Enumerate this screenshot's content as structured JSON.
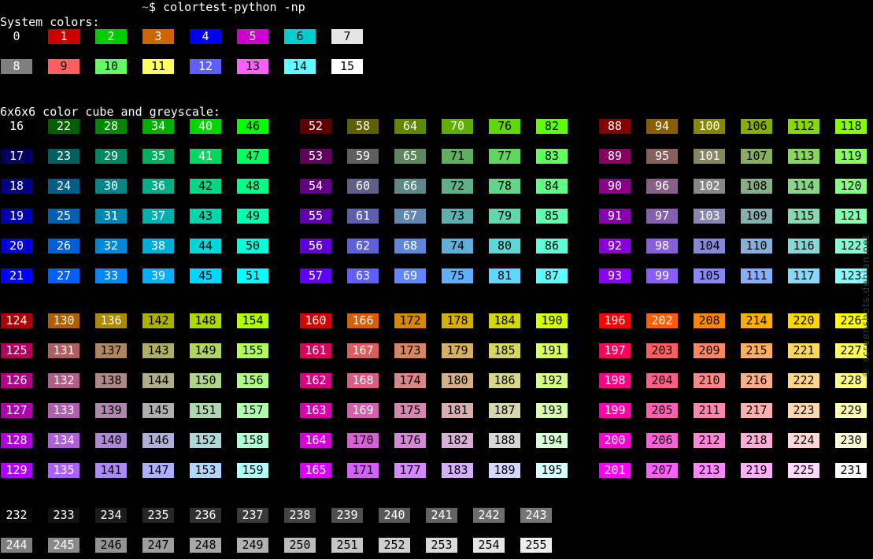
{
  "prompt": {
    "cwd": "~",
    "symbol": "$",
    "command": "colortest-python -np"
  },
  "sections": {
    "system_title": "System colors:",
    "cube_title": "6x6x6 color cube and greyscale:"
  },
  "watermark": "© screenshots.debian.net",
  "palette": {
    "system": [
      "#000000",
      "#cd0000",
      "#00cd00",
      "#cd6600",
      "#0000ee",
      "#cd00cd",
      "#00cdcd",
      "#e5e5e5",
      "#7f7f7f",
      "#ff5f5f",
      "#5fff5f",
      "#ffff5f",
      "#5f5fff",
      "#ff5fff",
      "#5fffff",
      "#ffffff"
    ],
    "cube_levels": [
      "00",
      "5f",
      "87",
      "af",
      "d7",
      "ff"
    ],
    "grey_start": 8,
    "grey_step": 10
  },
  "colors": {
    "0": "0",
    "1": "1",
    "2": "2",
    "3": "3",
    "4": "4",
    "5": "5",
    "6": "6",
    "7": "7",
    "8": "8",
    "9": "9",
    "10": "10",
    "11": "11",
    "12": "12",
    "13": "13",
    "14": "14",
    "15": "15",
    "16": "16",
    "17": "17",
    "18": "18",
    "19": "19",
    "20": "20",
    "21": "21",
    "22": "22",
    "23": "23",
    "24": "24",
    "25": "25",
    "26": "26",
    "27": "27",
    "28": "28",
    "29": "29",
    "30": "30",
    "31": "31",
    "32": "32",
    "33": "33",
    "34": "34",
    "35": "35",
    "36": "36",
    "37": "37",
    "38": "38",
    "39": "39",
    "40": "40",
    "41": "41",
    "42": "42",
    "43": "43",
    "44": "44",
    "45": "45",
    "46": "46",
    "47": "47",
    "48": "48",
    "49": "49",
    "50": "50",
    "51": "51",
    "52": "52",
    "53": "53",
    "54": "54",
    "55": "55",
    "56": "56",
    "57": "57",
    "58": "58",
    "59": "59",
    "60": "60",
    "61": "61",
    "62": "62",
    "63": "63",
    "64": "64",
    "65": "65",
    "66": "66",
    "67": "67",
    "68": "68",
    "69": "69",
    "70": "70",
    "71": "71",
    "72": "72",
    "73": "73",
    "74": "74",
    "75": "75",
    "76": "76",
    "77": "77",
    "78": "78",
    "79": "79",
    "80": "80",
    "81": "81",
    "82": "82",
    "83": "83",
    "84": "84",
    "85": "85",
    "86": "86",
    "87": "87",
    "88": "88",
    "89": "89",
    "90": "90",
    "91": "91",
    "92": "92",
    "93": "93",
    "94": "94",
    "95": "95",
    "96": "96",
    "97": "97",
    "98": "98",
    "99": "99",
    "100": "100",
    "101": "101",
    "102": "102",
    "103": "103",
    "104": "104",
    "105": "105",
    "106": "106",
    "107": "107",
    "108": "108",
    "109": "109",
    "110": "110",
    "111": "111",
    "112": "112",
    "113": "113",
    "114": "114",
    "115": "115",
    "116": "116",
    "117": "117",
    "118": "118",
    "119": "119",
    "120": "120",
    "121": "121",
    "122": "122",
    "123": "123",
    "124": "124",
    "125": "125",
    "126": "126",
    "127": "127",
    "128": "128",
    "129": "129",
    "130": "130",
    "131": "131",
    "132": "132",
    "133": "133",
    "134": "134",
    "135": "135",
    "136": "136",
    "137": "137",
    "138": "138",
    "139": "139",
    "140": "140",
    "141": "141",
    "142": "142",
    "143": "143",
    "144": "144",
    "145": "145",
    "146": "146",
    "147": "147",
    "148": "148",
    "149": "149",
    "150": "150",
    "151": "151",
    "152": "152",
    "153": "153",
    "154": "154",
    "155": "155",
    "156": "156",
    "157": "157",
    "158": "158",
    "159": "159",
    "160": "160",
    "161": "161",
    "162": "162",
    "163": "163",
    "164": "164",
    "165": "165",
    "166": "166",
    "167": "167",
    "168": "168",
    "169": "169",
    "170": "170",
    "171": "171",
    "172": "172",
    "173": "173",
    "174": "174",
    "175": "175",
    "176": "176",
    "177": "177",
    "178": "178",
    "179": "179",
    "180": "180",
    "181": "181",
    "182": "182",
    "183": "183",
    "184": "184",
    "185": "185",
    "186": "186",
    "187": "187",
    "188": "188",
    "189": "189",
    "190": "190",
    "191": "191",
    "192": "192",
    "193": "193",
    "194": "194",
    "195": "195",
    "196": "196",
    "197": "197",
    "198": "198",
    "199": "199",
    "200": "200",
    "201": "201",
    "202": "202",
    "203": "203",
    "204": "204",
    "205": "205",
    "206": "206",
    "207": "207",
    "208": "208",
    "209": "209",
    "210": "210",
    "211": "211",
    "212": "212",
    "213": "213",
    "214": "214",
    "215": "215",
    "216": "216",
    "217": "217",
    "218": "218",
    "219": "219",
    "220": "220",
    "221": "221",
    "222": "222",
    "223": "223",
    "224": "224",
    "225": "225",
    "226": "226",
    "227": "227",
    "228": "228",
    "229": "229",
    "230": "230",
    "231": "231",
    "232": "232",
    "233": "233",
    "234": "234",
    "235": "235",
    "236": "236",
    "237": "237",
    "238": "238",
    "239": "239",
    "240": "240",
    "241": "241",
    "242": "242",
    "243": "243",
    "244": "244",
    "245": "245",
    "246": "246",
    "247": "247",
    "248": "248",
    "249": "249",
    "250": "250",
    "251": "251",
    "252": "252",
    "253": "253",
    "254": "254",
    "255": "255"
  }
}
